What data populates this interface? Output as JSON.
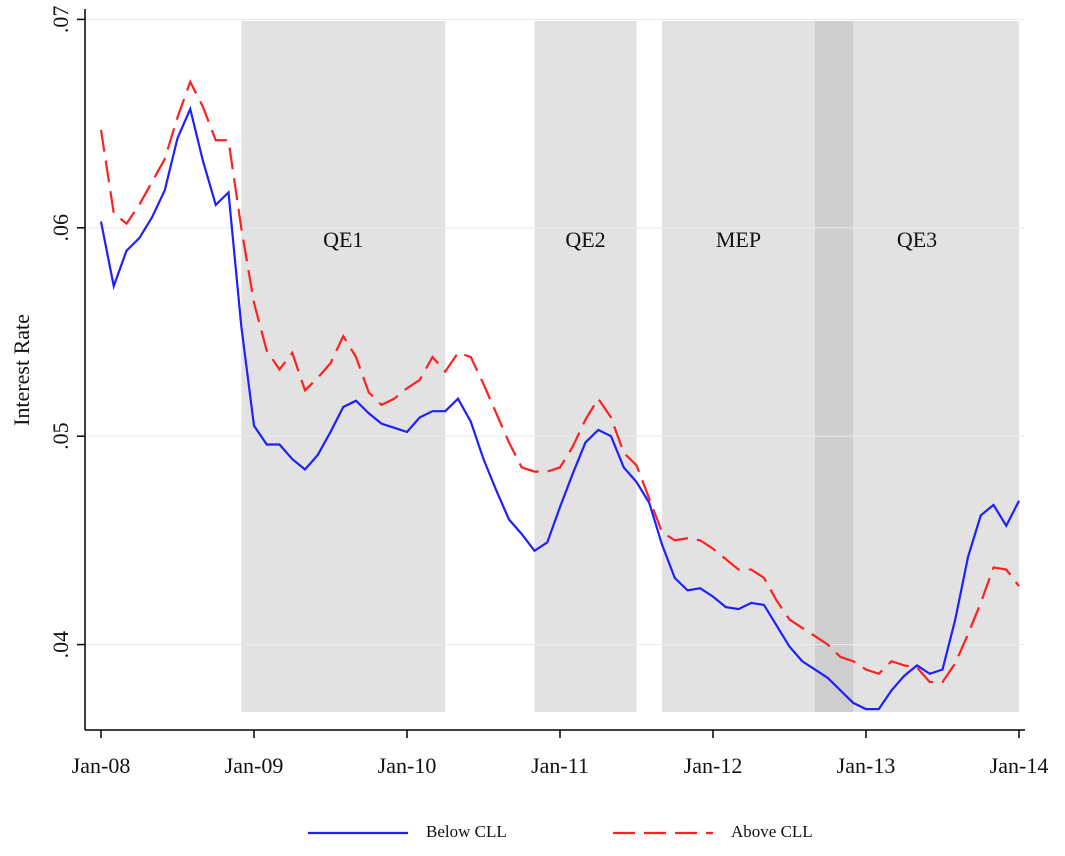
{
  "chart_data": {
    "type": "line",
    "y_label": "Interest Rate",
    "categories": [
      "Jan-08",
      null,
      null,
      null,
      null,
      null,
      null,
      null,
      null,
      null,
      null,
      null,
      "Jan-09",
      null,
      null,
      null,
      null,
      null,
      null,
      null,
      null,
      null,
      null,
      null,
      "Jan-10",
      null,
      null,
      null,
      null,
      null,
      null,
      null,
      null,
      null,
      null,
      null,
      "Jan-11",
      null,
      null,
      null,
      null,
      null,
      null,
      null,
      null,
      null,
      null,
      null,
      "Jan-12",
      null,
      null,
      null,
      null,
      null,
      null,
      null,
      null,
      null,
      null,
      null,
      "Jan-13",
      null,
      null,
      null,
      null,
      null,
      null,
      null,
      null,
      null,
      null,
      null,
      "Jan-14"
    ],
    "series": [
      {
        "name": "Below CLL",
        "color": "#1f1fff",
        "dashed": false,
        "values": [
          0.0603,
          0.0572,
          0.0589,
          0.0595,
          0.0605,
          0.0618,
          0.0643,
          0.0657,
          0.0632,
          0.0611,
          0.0617,
          0.0553,
          0.0505,
          0.0496,
          0.0496,
          0.0489,
          0.0484,
          0.0491,
          0.0502,
          0.0514,
          0.0517,
          0.0511,
          0.0506,
          0.0504,
          0.0502,
          0.0509,
          0.0512,
          0.0512,
          0.0518,
          0.0507,
          0.0489,
          0.0474,
          0.046,
          0.0453,
          0.0445,
          0.0449,
          0.0466,
          0.0482,
          0.0497,
          0.0503,
          0.05,
          0.0485,
          0.0478,
          0.0468,
          0.0448,
          0.0432,
          0.0426,
          0.0427,
          0.0423,
          0.0418,
          0.0417,
          0.042,
          0.0419,
          0.0409,
          0.0399,
          0.0392,
          0.0388,
          0.0384,
          0.0378,
          0.0372,
          0.0369,
          0.0369,
          0.0378,
          0.0385,
          0.039,
          0.0386,
          0.0388,
          0.0412,
          0.0442,
          0.0462,
          0.0467,
          0.0457,
          0.0469
        ]
      },
      {
        "name": "Above CLL",
        "color": "#ff2020",
        "dashed": true,
        "values": [
          0.0647,
          0.0607,
          0.0602,
          0.0611,
          0.0622,
          0.0633,
          0.0653,
          0.067,
          0.0658,
          0.0642,
          0.0642,
          0.06,
          0.0564,
          0.0541,
          0.0532,
          0.054,
          0.0522,
          0.0528,
          0.0535,
          0.0548,
          0.0538,
          0.0521,
          0.0515,
          0.0518,
          0.0523,
          0.0527,
          0.0538,
          0.0531,
          0.054,
          0.0538,
          0.0525,
          0.0511,
          0.0497,
          0.0485,
          0.0483,
          0.0483,
          0.0485,
          0.0495,
          0.0508,
          0.0518,
          0.0509,
          0.0492,
          0.0486,
          0.047,
          0.0454,
          0.045,
          0.0451,
          0.045,
          0.0446,
          0.0441,
          0.0436,
          0.0436,
          0.0432,
          0.0421,
          0.0412,
          0.0408,
          0.0404,
          0.04,
          0.0394,
          0.0392,
          0.0388,
          0.0386,
          0.0392,
          0.039,
          0.0389,
          0.0382,
          0.0382,
          0.0391,
          0.0405,
          0.042,
          0.0437,
          0.0436,
          0.0428
        ]
      }
    ],
    "shaded_regions": [
      {
        "label": "QE1",
        "start": 11,
        "end": 27
      },
      {
        "label": "QE2",
        "start": 34,
        "end": 42
      },
      {
        "label": "MEP",
        "start": 44,
        "end": 59
      },
      {
        "label": "QE3",
        "start": 56,
        "end": 72
      }
    ],
    "ylim": [
      0.0359,
      0.0705
    ],
    "yticks": [
      {
        "value": 0.04,
        "label": ".04"
      },
      {
        "value": 0.05,
        "label": ".05"
      },
      {
        "value": 0.06,
        "label": ".06"
      },
      {
        "value": 0.07,
        "label": ".07"
      }
    ],
    "grid": true,
    "legend_position": "bottom"
  }
}
